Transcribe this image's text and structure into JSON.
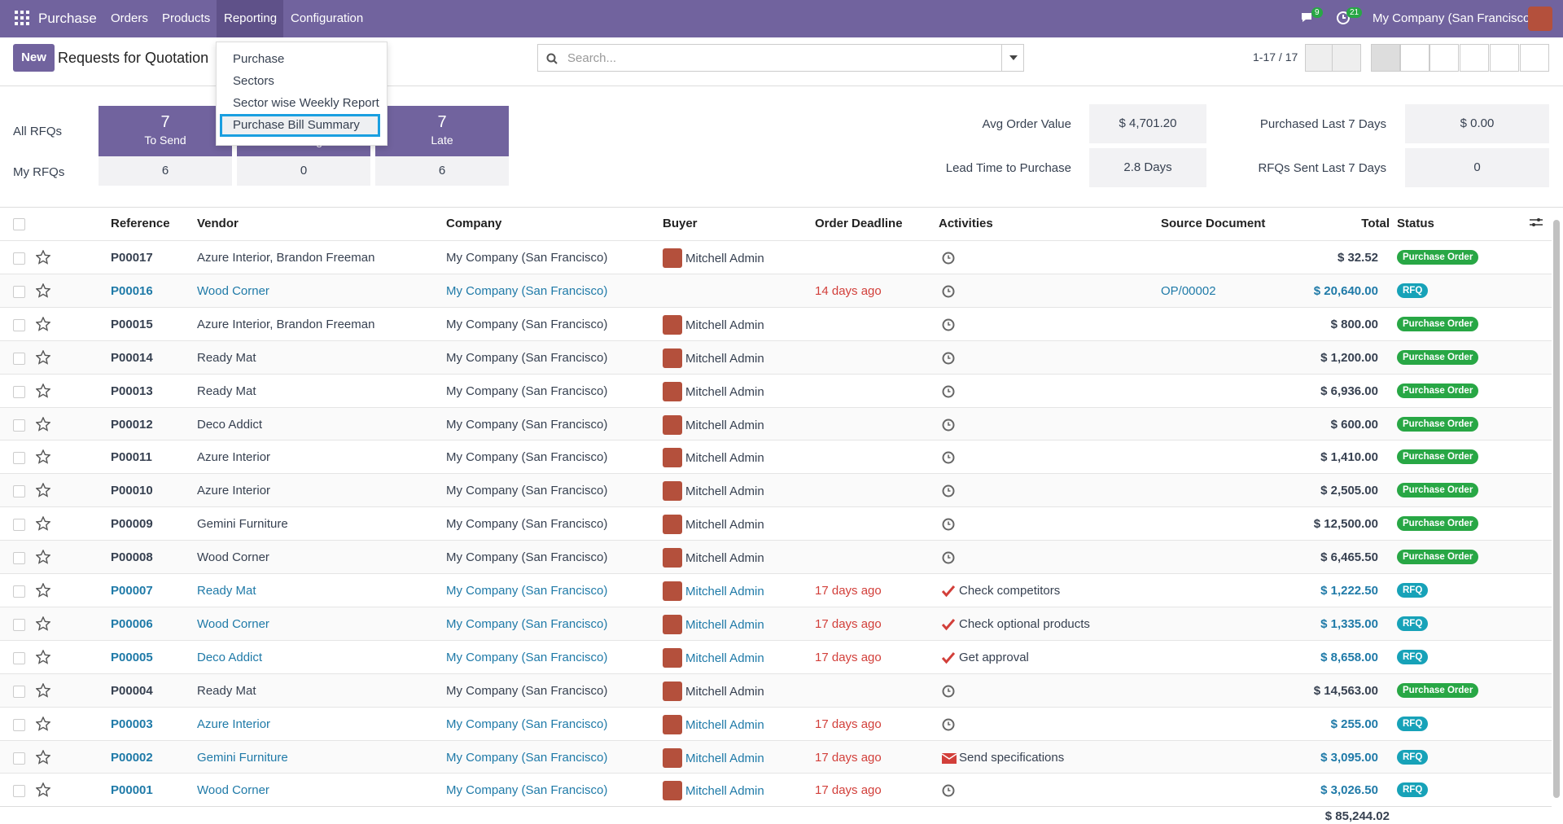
{
  "navbar": {
    "app": "Purchase",
    "menu": [
      "Orders",
      "Products",
      "Reporting",
      "Configuration"
    ],
    "messages": "9",
    "activities": "21",
    "company": "My Company (San Francisco)"
  },
  "dropdown": [
    "Purchase",
    "Sectors",
    "Sector wise Weekly Report",
    "Purchase Bill Summary"
  ],
  "control": {
    "new": "New",
    "title": "Requests for Quotation",
    "search_placeholder": "Search...",
    "pager": "1-17 / 17"
  },
  "dashboard": {
    "row_labels": [
      "All RFQs",
      "My RFQs"
    ],
    "tiles": [
      {
        "count": "7",
        "label": "To Send",
        "mine": "6"
      },
      {
        "label": "Waiting",
        "mine": "0"
      },
      {
        "count": "7",
        "label": "Late",
        "mine": "6"
      }
    ],
    "stats": [
      {
        "label": "Avg Order Value",
        "value": "$ 4,701.20"
      },
      {
        "label": "Purchased Last 7 Days",
        "value": "$ 0.00"
      },
      {
        "label": "Lead Time to Purchase",
        "value": "2.8 Days"
      },
      {
        "label": "RFQs Sent Last 7 Days",
        "value": "0"
      }
    ]
  },
  "table": {
    "headers": [
      "Reference",
      "Vendor",
      "Company",
      "Buyer",
      "Order Deadline",
      "Activities",
      "Source Document",
      "Total",
      "Status"
    ],
    "rows": [
      {
        "ref": "P00017",
        "vendor": "Azure Interior, Brandon Freeman",
        "company": "My Company (San Francisco)",
        "buyer": "Mitchell Admin",
        "activity_icon": "clock",
        "total": "$ 32.52",
        "status": "Purchase Order",
        "draft": false
      },
      {
        "ref": "P00016",
        "vendor": "Wood Corner",
        "company": "My Company (San Francisco)",
        "deadline": "14 days ago",
        "activity_icon": "clock",
        "source": "OP/00002",
        "total": "$ 20,640.00",
        "status": "RFQ",
        "draft": true
      },
      {
        "ref": "P00015",
        "vendor": "Azure Interior, Brandon Freeman",
        "company": "My Company (San Francisco)",
        "buyer": "Mitchell Admin",
        "activity_icon": "clock",
        "total": "$ 800.00",
        "status": "Purchase Order",
        "draft": false
      },
      {
        "ref": "P00014",
        "vendor": "Ready Mat",
        "company": "My Company (San Francisco)",
        "buyer": "Mitchell Admin",
        "activity_icon": "clock",
        "total": "$ 1,200.00",
        "status": "Purchase Order",
        "draft": false
      },
      {
        "ref": "P00013",
        "vendor": "Ready Mat",
        "company": "My Company (San Francisco)",
        "buyer": "Mitchell Admin",
        "activity_icon": "clock",
        "total": "$ 6,936.00",
        "status": "Purchase Order",
        "draft": false
      },
      {
        "ref": "P00012",
        "vendor": "Deco Addict",
        "company": "My Company (San Francisco)",
        "buyer": "Mitchell Admin",
        "activity_icon": "clock",
        "total": "$ 600.00",
        "status": "Purchase Order",
        "draft": false
      },
      {
        "ref": "P00011",
        "vendor": "Azure Interior",
        "company": "My Company (San Francisco)",
        "buyer": "Mitchell Admin",
        "activity_icon": "clock",
        "total": "$ 1,410.00",
        "status": "Purchase Order",
        "draft": false
      },
      {
        "ref": "P00010",
        "vendor": "Azure Interior",
        "company": "My Company (San Francisco)",
        "buyer": "Mitchell Admin",
        "activity_icon": "clock",
        "total": "$ 2,505.00",
        "status": "Purchase Order",
        "draft": false
      },
      {
        "ref": "P00009",
        "vendor": "Gemini Furniture",
        "company": "My Company (San Francisco)",
        "buyer": "Mitchell Admin",
        "activity_icon": "clock",
        "total": "$ 12,500.00",
        "status": "Purchase Order",
        "draft": false
      },
      {
        "ref": "P00008",
        "vendor": "Wood Corner",
        "company": "My Company (San Francisco)",
        "buyer": "Mitchell Admin",
        "activity_icon": "clock",
        "total": "$ 6,465.50",
        "status": "Purchase Order",
        "draft": false
      },
      {
        "ref": "P00007",
        "vendor": "Ready Mat",
        "company": "My Company (San Francisco)",
        "buyer": "Mitchell Admin",
        "deadline": "17 days ago",
        "activity_icon": "check",
        "activity": "Check competitors",
        "total": "$ 1,222.50",
        "status": "RFQ",
        "draft": true
      },
      {
        "ref": "P00006",
        "vendor": "Wood Corner",
        "company": "My Company (San Francisco)",
        "buyer": "Mitchell Admin",
        "deadline": "17 days ago",
        "activity_icon": "check",
        "activity": "Check optional products",
        "total": "$ 1,335.00",
        "status": "RFQ",
        "draft": true
      },
      {
        "ref": "P00005",
        "vendor": "Deco Addict",
        "company": "My Company (San Francisco)",
        "buyer": "Mitchell Admin",
        "deadline": "17 days ago",
        "activity_icon": "check",
        "activity": "Get approval",
        "total": "$ 8,658.00",
        "status": "RFQ",
        "draft": true
      },
      {
        "ref": "P00004",
        "vendor": "Ready Mat",
        "company": "My Company (San Francisco)",
        "buyer": "Mitchell Admin",
        "activity_icon": "clock",
        "total": "$ 14,563.00",
        "status": "Purchase Order",
        "draft": false
      },
      {
        "ref": "P00003",
        "vendor": "Azure Interior",
        "company": "My Company (San Francisco)",
        "buyer": "Mitchell Admin",
        "deadline": "17 days ago",
        "activity_icon": "clock",
        "total": "$ 255.00",
        "status": "RFQ",
        "draft": true
      },
      {
        "ref": "P00002",
        "vendor": "Gemini Furniture",
        "company": "My Company (San Francisco)",
        "buyer": "Mitchell Admin",
        "deadline": "17 days ago",
        "activity_icon": "mail",
        "activity": "Send specifications",
        "total": "$ 3,095.00",
        "status": "RFQ",
        "draft": true
      },
      {
        "ref": "P00001",
        "vendor": "Wood Corner",
        "company": "My Company (San Francisco)",
        "buyer": "Mitchell Admin",
        "deadline": "17 days ago",
        "activity_icon": "clock",
        "total": "$ 3,026.50",
        "status": "RFQ",
        "draft": true
      }
    ],
    "footer_total": "$ 85,244.02"
  }
}
